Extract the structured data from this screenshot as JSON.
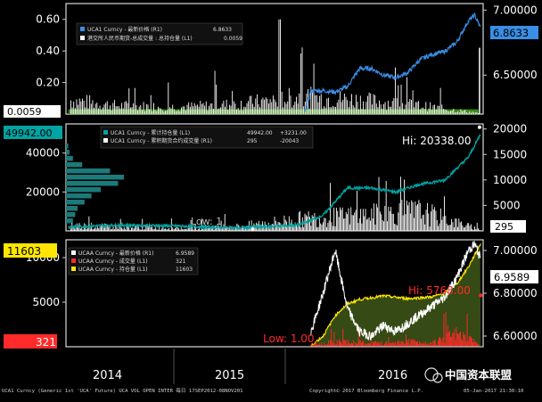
{
  "colors": {
    "background": "#000000",
    "frame": "#ffffff",
    "uca_price": "#3a8ee6",
    "uca_volume_green": "#3a8c17",
    "uca_volume_white": "#ffffff",
    "open_interest_teal": "#00a3a3",
    "uca_price_white": "#ffffff",
    "uca_volume_red": "#ff2a2a",
    "uca_oi_yellow": "#ffe600",
    "oi_fill": "#354a14"
  },
  "panel1": {
    "legend": [
      {
        "label": "UCA1 Curncy - 最新价格 (R1)",
        "value": "6.8633",
        "color": "#3a8ee6"
      },
      {
        "label": "港交所人民币期货-总成交量 : 总持仓量 (L1)",
        "value": "0.0059",
        "color": "#ffffff"
      }
    ],
    "current_left_label": "0.0059",
    "current_right_label": "6.8633"
  },
  "panel2": {
    "legend": [
      {
        "label": "UCA1 Curncy - 累计持仓量 (L1)",
        "value": "49942.00",
        "change": "+3231.00",
        "color": "#00a3a3"
      },
      {
        "label": "UCA1 Curncy - 累积期货合约成交量 (R1)",
        "value": "295",
        "change": "-20043",
        "color": "#ffffff"
      }
    ],
    "current_left_label": "49942.00",
    "current_right_label": "295",
    "hi_label": "Hi: 20338.00",
    "low_label": "Low: 1"
  },
  "panel3": {
    "legend": [
      {
        "label": "UCAA Curncy - 最新价格 (R1)",
        "value": "6.9589",
        "color": "#ffffff"
      },
      {
        "label": "UCAA Curncy - 成交量 (L1)",
        "value": "321",
        "color": "#ff2a2a"
      },
      {
        "label": "UCAA Curncy - 持仓量 (L1)",
        "value": "11603",
        "color": "#ffe600"
      }
    ],
    "current_left_yellow": "11603",
    "current_left_red": "321",
    "current_right_label": "6.9589",
    "hi_label": "Hi: 5768.00",
    "low_label": "Low: 1.00"
  },
  "footer": {
    "left": "UCA1 Curncy (Generic 1st 'UCA' Future) UCA VOL OPEN INTER 每日 17SEP2012-08NOV201",
    "middle": "Copyright© 2017 Bloomberg Finance L.P.",
    "right": "05-Jan-2017 21:30:10",
    "watermark": "中国资本联盟"
  },
  "chart_data": [
    {
      "type": "line",
      "ylim_left": [
        0,
        0.7
      ],
      "ylim_right": [
        6.2,
        7.05
      ],
      "left_ticks": [
        "0.60",
        "0.40",
        "0.20"
      ],
      "right_ticks": [
        "7.00000",
        "6.50000"
      ],
      "series": [
        {
          "name": "UCA1 Curncy - 最新价格 (R1)",
          "axis": "right",
          "x": [
            2015.55,
            2015.6,
            2015.7,
            2015.8,
            2015.9,
            2016.0,
            2016.1,
            2016.2,
            2016.3,
            2016.4,
            2016.5,
            2016.6,
            2016.7,
            2016.8,
            2016.9,
            2016.95,
            2017.0
          ],
          "values": [
            6.21,
            6.38,
            6.38,
            6.37,
            6.41,
            6.55,
            6.55,
            6.5,
            6.48,
            6.52,
            6.62,
            6.66,
            6.68,
            6.75,
            6.92,
            6.96,
            6.86
          ]
        },
        {
          "name": "港交所人民币期货-总成交量 : 总持仓量 (L1)",
          "axis": "left",
          "x": [
            2013.6,
            2014.0,
            2014.5,
            2015.0,
            2015.5,
            2016.0,
            2016.5,
            2017.0
          ],
          "values": [
            0.1,
            0.06,
            0.05,
            0.07,
            0.12,
            0.1,
            0.06,
            0.0059
          ]
        }
      ]
    },
    {
      "type": "area",
      "ylim_left": [
        0,
        55000
      ],
      "ylim_right": [
        0,
        21000
      ],
      "left_ticks": [
        "40000",
        "20000"
      ],
      "right_ticks": [
        "20000",
        "15000",
        "10000",
        "5000"
      ],
      "series": [
        {
          "name": "UCA1 Curncy - 累计持仓量 (L1)",
          "axis": "left",
          "x": [
            2013.6,
            2014.0,
            2014.5,
            2015.0,
            2015.5,
            2015.7,
            2015.9,
            2016.1,
            2016.3,
            2016.5,
            2016.7,
            2016.9,
            2017.0
          ],
          "values": [
            2000,
            3000,
            2500,
            1500,
            3000,
            8000,
            22000,
            22000,
            20000,
            24000,
            26000,
            38000,
            49942
          ]
        },
        {
          "name": "UCA1 Curncy - 累积期货合约成交量 (R1)",
          "axis": "right",
          "x": [
            2013.6,
            2014.0,
            2014.5,
            2015.0,
            2015.5,
            2016.0,
            2016.5,
            2017.0
          ],
          "values": [
            1500,
            1000,
            800,
            1200,
            3000,
            4000,
            5000,
            295
          ]
        }
      ]
    },
    {
      "type": "line",
      "ylim_left": [
        0,
        12000
      ],
      "ylim_right": [
        6.55,
        7.05
      ],
      "left_ticks": [
        "10000",
        "5000"
      ],
      "right_ticks": [
        "7.00000",
        "6.80000",
        "6.60000"
      ],
      "series": [
        {
          "name": "UCAA Curncy - 最新价格 (R1)",
          "axis": "right",
          "x": [
            2015.6,
            2015.7,
            2015.8,
            2015.9,
            2016.0,
            2016.1,
            2016.2,
            2016.3,
            2016.4,
            2016.5,
            2016.6,
            2016.7,
            2016.8,
            2016.9,
            2016.95,
            2017.0
          ],
          "values": [
            6.62,
            6.8,
            7.0,
            6.73,
            6.62,
            6.6,
            6.65,
            6.62,
            6.66,
            6.7,
            6.74,
            6.78,
            6.87,
            7.0,
            7.03,
            6.96
          ]
        },
        {
          "name": "UCAA Curncy - 成交量 (L1)",
          "axis": "left",
          "x": [
            2015.6,
            2015.8,
            2016.0,
            2016.2,
            2016.4,
            2016.6,
            2016.8,
            2017.0
          ],
          "values": [
            200,
            600,
            500,
            400,
            700,
            500,
            1500,
            321
          ]
        },
        {
          "name": "UCAA Curncy - 持仓量 (L1)",
          "axis": "left",
          "x": [
            2015.6,
            2015.7,
            2015.8,
            2015.9,
            2016.0,
            2016.2,
            2016.4,
            2016.6,
            2016.7,
            2016.8,
            2016.9,
            2017.0
          ],
          "values": [
            100,
            1200,
            3500,
            4800,
            5300,
            5700,
            5400,
            5600,
            6000,
            7000,
            9000,
            11603
          ]
        }
      ]
    }
  ],
  "x_axis": {
    "labels": [
      "2014",
      "2015",
      "2016"
    ]
  }
}
